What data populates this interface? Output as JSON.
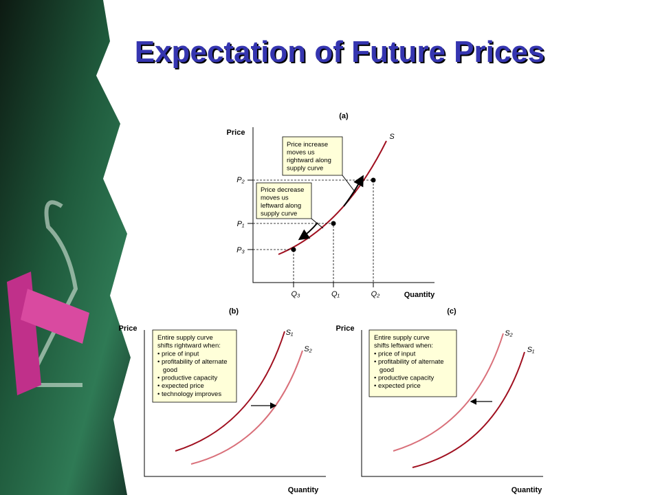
{
  "title": "Expectation of Future Prices",
  "panel_a": {
    "label": "(a)",
    "y_axis": "Price",
    "x_axis": "Quantity",
    "curve": "S",
    "price_labels": [
      "P₂",
      "P₁",
      "P₃"
    ],
    "quantity_labels": [
      "Q₃",
      "Q₁",
      "Q₂"
    ],
    "notes": [
      [
        "Price increase",
        "moves us",
        "rightward along",
        "supply curve"
      ],
      [
        "Price decrease",
        "moves us",
        "leftward along",
        "supply curve"
      ]
    ]
  },
  "panel_b": {
    "label": "(b)",
    "y_axis": "Price",
    "x_axis": "Quantity",
    "curves": [
      "S₁",
      "S₂"
    ],
    "note": [
      "Entire supply curve",
      "shifts rightward when:",
      "• price of input",
      "• profitability of alternate",
      "   good",
      "• productive capacity",
      "• expected price",
      "• technology improves"
    ]
  },
  "panel_c": {
    "label": "(c)",
    "y_axis": "Price",
    "x_axis": "Quantity",
    "curves": [
      "S₂",
      "S₁"
    ],
    "note": [
      "Entire supply curve",
      "shifts leftward when:",
      "• price of input",
      "• profitability of alternate",
      "   good",
      "• productive capacity",
      "• expected price"
    ]
  }
}
